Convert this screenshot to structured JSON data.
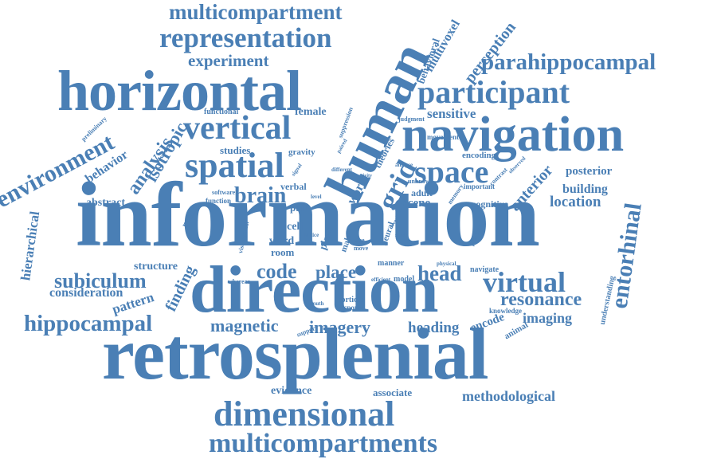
{
  "colors": {
    "word": "#4a7fb5",
    "background": "#ffffff"
  },
  "words": {
    "information": "information",
    "retrosplenial": "retrosplenial",
    "direction": "direction",
    "horizontal": "horizontal",
    "human": "human",
    "navigation": "navigation",
    "dimensional": "dimensional",
    "multicompartments": "multicompartments",
    "multicompartment": "multicompartment",
    "representation": "representation",
    "spatial": "spatial",
    "vertical": "vertical",
    "participant": "participant",
    "parahippocampal": "parahippocampal",
    "space": "space",
    "grid": "grid",
    "entorhinal": "entorhinal",
    "environment": "environment",
    "virtual": "virtual",
    "hippocampal": "hippocampal",
    "subiculum": "subiculum",
    "resonance": "resonance",
    "experiment": "experiment",
    "brain": "brain",
    "code": "code",
    "place": "place",
    "head": "head",
    "magnetic": "magnetic",
    "imagery": "imagery",
    "analysis": "analysis",
    "isotropic": "isotropic",
    "perception": "perception",
    "multivoxel": "multivoxel",
    "behavioral": "behavioral",
    "sensitive": "sensitive",
    "methodological": "methodological",
    "heading": "heading",
    "imaging": "imaging",
    "encode": "encode",
    "anterior": "anterior",
    "posterior": "posterior",
    "building": "building",
    "location": "location",
    "hierarchical": "hierarchical",
    "consideration": "consideration",
    "pattern": "pattern",
    "finding": "finding",
    "structure": "structure",
    "evidence": "evidence",
    "associate": "associate",
    "behavior": "behavior",
    "abstract": "abstract",
    "female": "female",
    "functional": "functional",
    "studies": "studies",
    "gravity": "gravity",
    "verbal": "verbal",
    "reality": "reality",
    "pair": "pair",
    "cell": "cell",
    "word": "word",
    "room": "room",
    "scene": "scene",
    "adult": "adult",
    "cognitive": "cognitive",
    "world": "world",
    "theories": "theories",
    "neural": "neural",
    "plane": "plane",
    "male": "male",
    "movement": "movement",
    "encoding": "encoding",
    "important": "important",
    "navigate": "navigate",
    "understanding": "understanding",
    "animal": "animal",
    "knowledge": "knowledge",
    "cortices": "cortices",
    "response": "response",
    "model": "model",
    "manner": "manner",
    "preliminary": "preliminary",
    "suppression": "suppression",
    "judgment": "judgment",
    "software": "software",
    "function": "function",
    "visuospatial": "visuospatial",
    "whereas": "whereas",
    "azimuth": "azimuth",
    "support": "support",
    "efficient": "efficient",
    "unknown": "unknown",
    "memory": "memory",
    "contrast": "contrast",
    "observed": "observed",
    "repetition": "repetition",
    "different": "different",
    "activity": "activity",
    "analyse": "analyse",
    "paired": "paired",
    "signal": "signal",
    "level": "level",
    "lattice": "lattice",
    "axe": "axe",
    "move": "move",
    "study": "study",
    "reveal": "reveal",
    "physical": "physical"
  }
}
